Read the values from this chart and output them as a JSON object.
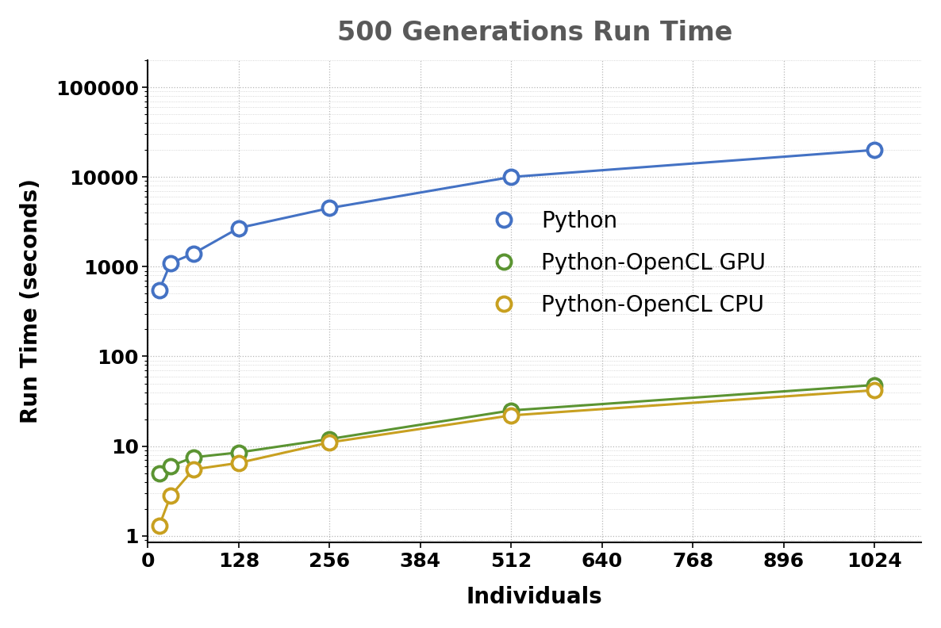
{
  "title": "500 Generations Run Time",
  "xlabel": "Individuals",
  "ylabel": "Run Time (seconds)",
  "xticks": [
    0,
    128,
    256,
    384,
    512,
    640,
    768,
    896,
    1024
  ],
  "xlim": [
    0,
    1090
  ],
  "ylim": [
    0.85,
    200000
  ],
  "series": [
    {
      "label": "Python",
      "color": "#4472C4",
      "x": [
        16,
        32,
        64,
        128,
        256,
        512,
        1024
      ],
      "y": [
        550,
        1100,
        1400,
        2700,
        4500,
        10000,
        20000
      ]
    },
    {
      "label": "Python-OpenCL GPU",
      "color": "#5B9432",
      "x": [
        16,
        32,
        64,
        128,
        256,
        512,
        1024
      ],
      "y": [
        5.0,
        6.0,
        7.5,
        8.5,
        12.0,
        25.0,
        48.0
      ]
    },
    {
      "label": "Python-OpenCL CPU",
      "color": "#C8A020",
      "x": [
        16,
        32,
        64,
        128,
        256,
        512,
        1024
      ],
      "y": [
        1.3,
        2.8,
        5.5,
        6.5,
        11.0,
        22.0,
        42.0
      ]
    }
  ],
  "background_color": "#ffffff",
  "plot_bg_color": "#ffffff",
  "grid_color": "#999999",
  "title_fontsize": 24,
  "title_color": "#595959",
  "axis_label_fontsize": 20,
  "tick_fontsize": 18,
  "legend_fontsize": 20,
  "marker_size": 13,
  "linewidth": 2.2,
  "ytick_labels": [
    "1",
    "10",
    "100",
    "1000",
    "10000",
    "100000"
  ],
  "ytick_values": [
    1,
    10,
    100,
    1000,
    10000,
    100000
  ]
}
